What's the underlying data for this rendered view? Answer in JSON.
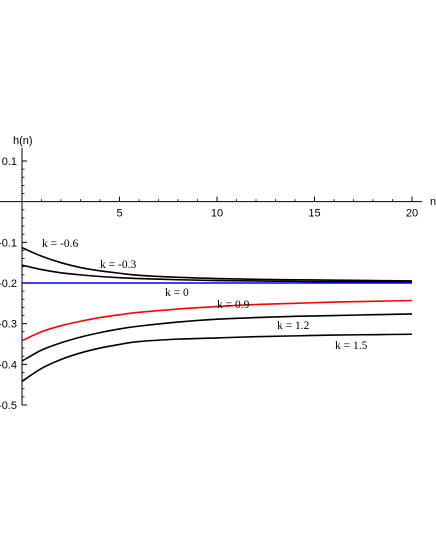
{
  "chart_data": {
    "type": "line",
    "xlabel": "n",
    "ylabel": "h(n)",
    "xlim": [
      0,
      20
    ],
    "ylim": [
      -0.5,
      0.1
    ],
    "x_ticks": [
      5,
      10,
      15,
      20
    ],
    "y_ticks": [
      0.1,
      -0.1,
      -0.2,
      -0.3,
      -0.4,
      -0.5
    ],
    "y_tick_labels": [
      "0.1",
      "-0.1",
      "-0.2",
      "-0.3",
      "-0.4",
      "-0.5"
    ],
    "grid": false,
    "series": [
      {
        "name": "k = -0.6",
        "color": "#000000",
        "x": [
          0,
          1,
          2,
          3,
          4,
          5,
          6,
          8,
          10,
          12,
          14,
          16,
          18,
          20
        ],
        "y": [
          -0.113,
          -0.134,
          -0.15,
          -0.162,
          -0.17,
          -0.176,
          -0.181,
          -0.186,
          -0.189,
          -0.191,
          -0.192,
          -0.193,
          -0.194,
          -0.195
        ]
      },
      {
        "name": "k = -0.3",
        "color": "#000000",
        "x": [
          0,
          1,
          2,
          3,
          4,
          5,
          6,
          8,
          10,
          12,
          14,
          16,
          18,
          20
        ],
        "y": [
          -0.156,
          -0.167,
          -0.175,
          -0.18,
          -0.184,
          -0.187,
          -0.189,
          -0.192,
          -0.194,
          -0.195,
          -0.196,
          -0.197,
          -0.197,
          -0.197
        ]
      },
      {
        "name": "k = 0",
        "color": "#0000ff",
        "x": [
          0,
          20
        ],
        "y": [
          -0.2,
          -0.2
        ]
      },
      {
        "name": "k = 0.9",
        "color": "#ff0000",
        "x": [
          0,
          1,
          2,
          3,
          4,
          5,
          6,
          8,
          10,
          12,
          14,
          16,
          18,
          20
        ],
        "y": [
          -0.342,
          -0.32,
          -0.305,
          -0.294,
          -0.285,
          -0.278,
          -0.272,
          -0.264,
          -0.258,
          -0.253,
          -0.25,
          -0.247,
          -0.245,
          -0.243
        ]
      },
      {
        "name": "k = 1.2",
        "color": "#000000",
        "x": [
          0,
          1,
          2,
          3,
          4,
          5,
          6,
          8,
          10,
          12,
          14,
          16,
          18,
          20
        ],
        "y": [
          -0.392,
          -0.365,
          -0.347,
          -0.333,
          -0.322,
          -0.313,
          -0.306,
          -0.296,
          -0.289,
          -0.285,
          -0.282,
          -0.28,
          -0.278,
          -0.276
        ]
      },
      {
        "name": "k = 1.5",
        "color": "#000000",
        "x": [
          0,
          1,
          2,
          3,
          4,
          5,
          6,
          8,
          10,
          12,
          14,
          16,
          18,
          20
        ],
        "y": [
          -0.442,
          -0.41,
          -0.388,
          -0.372,
          -0.36,
          -0.351,
          -0.344,
          -0.338,
          -0.335,
          -0.332,
          -0.33,
          -0.328,
          -0.327,
          -0.326
        ]
      }
    ],
    "annotations": [
      "k = -0.6",
      "k = -0.3",
      "k = 0",
      "k =  0.9",
      "k = 1.2",
      "k = 1.5"
    ]
  }
}
